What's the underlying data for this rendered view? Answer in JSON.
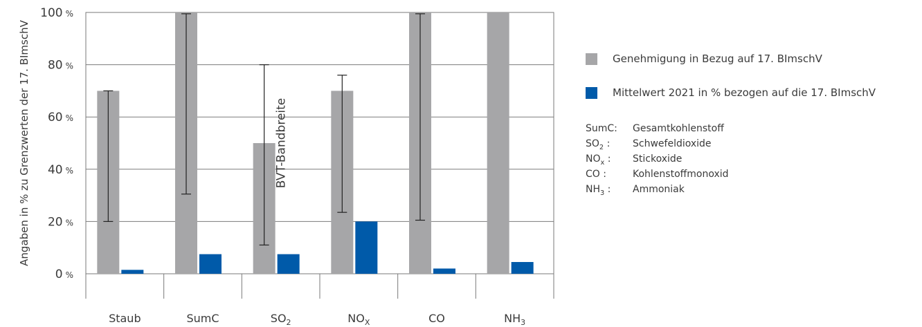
{
  "chart_data": {
    "type": "bar",
    "ylabel": "Angaben in % zu Grenzwerten der 17. BImschV",
    "ylim": [
      0,
      100
    ],
    "yticks": [
      {
        "value": 0,
        "num": "0",
        "unit": "%"
      },
      {
        "value": 20,
        "num": "20",
        "unit": "%"
      },
      {
        "value": 40,
        "num": "40",
        "unit": "%"
      },
      {
        "value": 60,
        "num": "60",
        "unit": "%"
      },
      {
        "value": 80,
        "num": "80",
        "unit": "%"
      },
      {
        "value": 100,
        "num": "100",
        "unit": "%"
      }
    ],
    "categories": [
      {
        "base": "Staub",
        "sub": ""
      },
      {
        "base": "SumC",
        "sub": ""
      },
      {
        "base": "SO",
        "sub": "2"
      },
      {
        "base": "NO",
        "sub": "X"
      },
      {
        "base": "CO",
        "sub": ""
      },
      {
        "base": "NH",
        "sub": "3"
      }
    ],
    "series": [
      {
        "name": "Genehmigung in Bezug auf 17. BImschV",
        "color": "#a6a6a8",
        "values": [
          70,
          100,
          50,
          70,
          100,
          100
        ]
      },
      {
        "name": "Mittelwert 2021 in % bezogen auf die 17. BImschV",
        "color": "#005aa9",
        "values": [
          1.5,
          7.5,
          7.5,
          20,
          2,
          4.5
        ]
      }
    ],
    "bvt_ranges": [
      [
        20,
        70
      ],
      [
        30.5,
        99.5
      ],
      [
        11,
        80
      ],
      [
        23.5,
        76
      ],
      [
        20.5,
        99.5
      ],
      null
    ],
    "annotation": "BVT-Bandbreite",
    "grid": true,
    "legend_position": "right"
  },
  "legend": {
    "items": [
      {
        "label": "Genehmigung in Bezug auf 17. BImschV",
        "color": "#a6a6a8"
      },
      {
        "label": "Mittelwert 2021 in % bezogen auf die 17. BImschV",
        "color": "#005aa9"
      }
    ],
    "abbreviations": [
      {
        "key": "SumC:",
        "value": "Gesamtkohlenstoff"
      },
      {
        "key_base": "SO",
        "key_sub": "2",
        "key_suffix": " :",
        "value": "Schwefeldioxide"
      },
      {
        "key_base": "NO",
        "key_sub": "x",
        "key_suffix": " :",
        "value": "Stickoxide"
      },
      {
        "key": "CO :",
        "value": "Kohlenstoffmonoxid"
      },
      {
        "key_base": "NH",
        "key_sub": "3",
        "key_suffix": " :",
        "value": "Ammoniak"
      }
    ]
  }
}
